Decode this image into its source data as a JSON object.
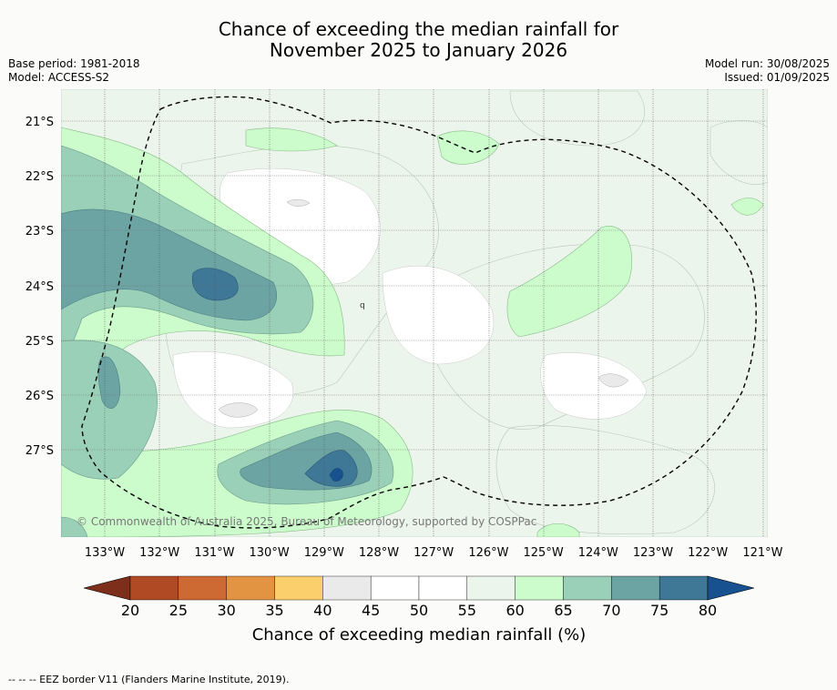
{
  "title_line1": "Chance of exceeding the median rainfall for",
  "title_line2": "November 2025 to January 2026",
  "base_period": "Base period: 1981-2018",
  "model": "Model: ACCESS-S2",
  "model_run": "Model run: 30/08/2025",
  "issued": "Issued: 01/09/2025",
  "copyright": "© Commonwealth of Australia 2025, Bureau of Meteorology, supported by COSPPac",
  "lon_labels": [
    "133°W",
    "132°W",
    "131°W",
    "130°W",
    "129°W",
    "128°W",
    "127°W",
    "126°W",
    "125°W",
    "124°W",
    "123°W",
    "122°W",
    "121°W"
  ],
  "lat_labels": [
    "21°S",
    "22°S",
    "23°S",
    "24°S",
    "25°S",
    "26°S",
    "27°S"
  ],
  "map_glyph": "q",
  "colorbar": {
    "title": "Chance of exceeding median rainfall (%)",
    "tick_labels": [
      "20",
      "25",
      "30",
      "35",
      "40",
      "45",
      "50",
      "55",
      "60",
      "65",
      "70",
      "75",
      "80"
    ],
    "colors": [
      "#7e2f1c",
      "#b04a24",
      "#cd6a33",
      "#e29442",
      "#fbd06c",
      "#eaeaea",
      "#ffffff",
      "#ffffff",
      "#ecf5ec",
      "#ccfccc",
      "#9bd0b8",
      "#6ca3a3",
      "#3f7797",
      "#17518f"
    ]
  },
  "footer": "--  --  -- EEZ border V11 (Flanders Marine Institute, 2019)."
}
